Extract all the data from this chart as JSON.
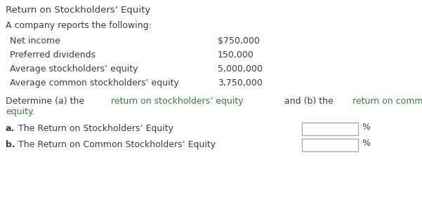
{
  "title": "Return on Stockholders’ Equity",
  "subtitle": "A company reports the following:",
  "rows": [
    {
      "label": "Net income",
      "value": "$750,000"
    },
    {
      "label": "Preferred dividends",
      "value": "150,000"
    },
    {
      "label": "Average stockholders’ equity",
      "value": "5,000,000"
    },
    {
      "label": "Average common stockholders’ equity",
      "value": "3,750,000"
    }
  ],
  "line1_parts": [
    {
      "text": "Determine (a) the ",
      "color": "#3d3d3d"
    },
    {
      "text": "return on stockholders’ equity",
      "color": "#3a7d3a"
    },
    {
      "text": " and (b) the ",
      "color": "#3d3d3d"
    },
    {
      "text": "return on common stockholders’",
      "color": "#3a7d3a"
    }
  ],
  "line2_text": "equity.",
  "line2_color": "#3a7d3a",
  "answer_a_bold": "a.",
  "answer_a_rest": " The Return on Stockholders’ Equity",
  "answer_b_bold": "b.",
  "answer_b_rest": " The Return on Common Stockholders’ Equity",
  "percent_sign": "%",
  "text_color": "#3d3d3d",
  "green_color": "#3a7d3a",
  "bg_color": "#ffffff",
  "box_edge_color": "#aaaaaa",
  "font_size": 9.0,
  "title_font_size": 9.5
}
